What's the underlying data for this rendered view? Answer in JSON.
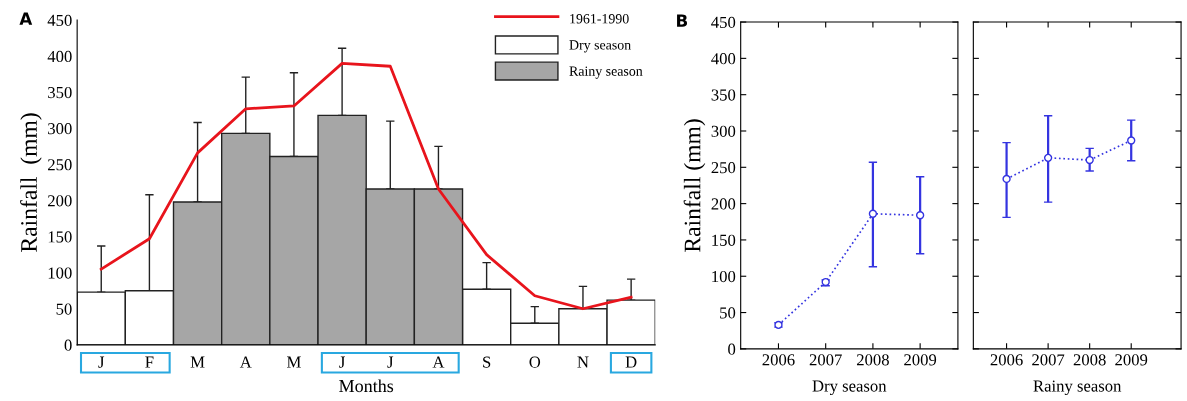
{
  "chart_data": [
    {
      "type": "bar",
      "title": null,
      "xlabel": "Months",
      "ylabel": "Rainfall  (mm)",
      "annotations": [
        "A"
      ],
      "categories": [
        "J",
        "F",
        "M",
        "A",
        "M",
        "J",
        "J",
        "A",
        "S",
        "O",
        "N",
        "D"
      ],
      "ylim": [
        0,
        450
      ],
      "yticks": [
        0,
        50,
        100,
        150,
        200,
        250,
        300,
        350,
        400,
        450
      ],
      "legend": "top right",
      "grid": false,
      "series": [
        {
          "name": "Dry season",
          "type": "bar",
          "color": "#ffffff",
          "values": [
            73,
            75,
            null,
            null,
            null,
            null,
            null,
            null,
            77,
            30,
            50,
            62
          ],
          "errors": [
            [
              73,
              137
            ],
            [
              75,
              208
            ],
            null,
            null,
            null,
            null,
            null,
            null,
            [
              77,
              114
            ],
            [
              30,
              53
            ],
            [
              50,
              81
            ],
            [
              62,
              91
            ]
          ]
        },
        {
          "name": "Rainy season",
          "type": "bar",
          "color": "#a6a6a6",
          "values": [
            null,
            null,
            198,
            293,
            261,
            318,
            216,
            216,
            null,
            null,
            null,
            null
          ],
          "errors": [
            null,
            null,
            [
              198,
              308
            ],
            [
              293,
              371
            ],
            [
              261,
              377
            ],
            [
              318,
              411
            ],
            [
              216,
              310
            ],
            [
              216,
              275
            ],
            null,
            null,
            null,
            null
          ]
        },
        {
          "name": "1961-1990",
          "type": "line",
          "color": "#e8141c",
          "line_style": "solid",
          "marker": "none",
          "values": [
            105,
            147,
            266,
            327,
            331,
            390,
            386,
            216,
            125,
            68,
            50,
            66
          ]
        }
      ]
    },
    {
      "type": "line",
      "xlabel": "Dry season",
      "ylabel": "Rainfall (mm)",
      "annotations": [
        "B"
      ],
      "categories": [
        "2006",
        "2007",
        "2008",
        "2009"
      ],
      "ylim": [
        0,
        450
      ],
      "yticks": [
        0,
        50,
        100,
        150,
        200,
        250,
        300,
        350,
        400,
        450
      ],
      "grid": false,
      "marker": "circle",
      "line_style": "dotted",
      "series": [
        {
          "color": "#3434e0",
          "values": [
            33,
            92,
            186,
            184
          ],
          "errors": [
            [
              30,
              36
            ],
            [
              87,
              95
            ],
            [
              113,
              257
            ],
            [
              131,
              237
            ]
          ]
        }
      ]
    },
    {
      "type": "line",
      "xlabel": "Rainy season",
      "tick_labels": "x",
      "categories": [
        "2006",
        "2007",
        "2008",
        "2009"
      ],
      "ylim": [
        0,
        450
      ],
      "yticks": [
        0,
        50,
        100,
        150,
        200,
        250,
        300,
        350,
        400,
        450
      ],
      "grid": false,
      "marker": "circle",
      "line_style": "dotted",
      "series": [
        {
          "color": "#3434e0",
          "values": [
            234,
            263,
            260,
            287
          ],
          "errors": [
            [
              181,
              284
            ],
            [
              202,
              321
            ],
            [
              245,
              276
            ],
            [
              259,
              315
            ]
          ]
        }
      ]
    }
  ]
}
